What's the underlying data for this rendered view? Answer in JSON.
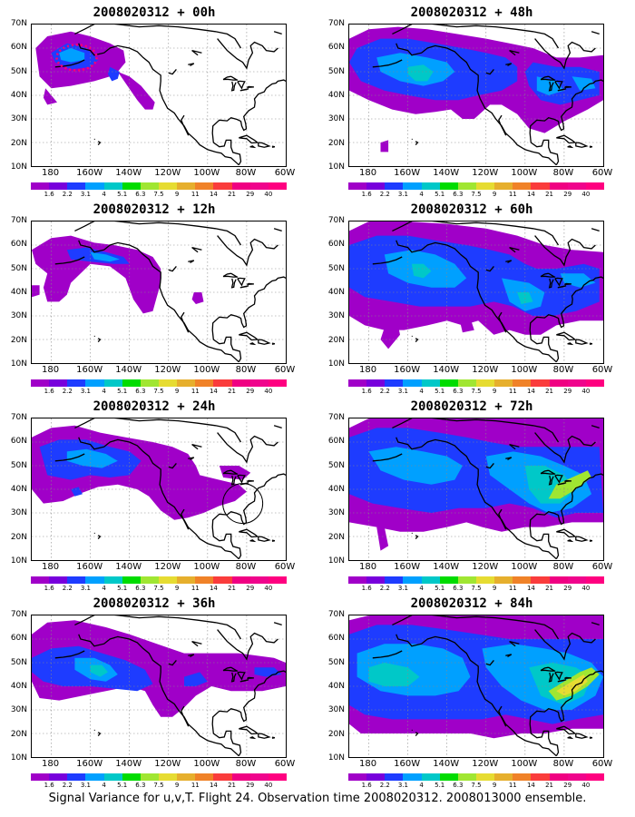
{
  "panels": [
    {
      "title": "2008020312 + 00h",
      "blobs": "p00"
    },
    {
      "title": "2008020312 + 48h",
      "blobs": "p48"
    },
    {
      "title": "2008020312 + 12h",
      "blobs": "p12"
    },
    {
      "title": "2008020312 + 60h",
      "blobs": "p60"
    },
    {
      "title": "2008020312 + 24h",
      "blobs": "p24"
    },
    {
      "title": "2008020312 + 72h",
      "blobs": "p72"
    },
    {
      "title": "2008020312 + 36h",
      "blobs": "p36"
    },
    {
      "title": "2008020312 + 84h",
      "blobs": "p84"
    }
  ],
  "lat_labels": [
    "70N",
    "60N",
    "50N",
    "40N",
    "30N",
    "20N",
    "10N"
  ],
  "lon_labels": [
    "180",
    "160W",
    "140W",
    "120W",
    "100W",
    "80W",
    "60W"
  ],
  "colorbar": {
    "labels": [
      "1.6",
      "2.2",
      "3.1",
      "4",
      "5.1",
      "6.3",
      "7.5",
      "9",
      "11",
      "14",
      "21",
      "29",
      "40"
    ],
    "colors": [
      "#a000c8",
      "#7800dc",
      "#1e3cff",
      "#00a0ff",
      "#00c8c8",
      "#00dc00",
      "#a0e632",
      "#e6dc32",
      "#e6af2d",
      "#f08228",
      "#fa3c3c",
      "#f00082",
      "#f0048c",
      "#ff0080"
    ]
  },
  "caption": "Signal Variance for u,v,T. Flight 24. Observation time 2008020312. 2008013000 ensemble."
}
